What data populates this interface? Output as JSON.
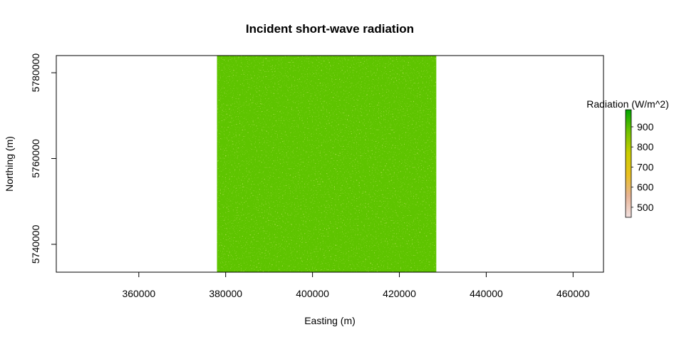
{
  "chart_data": {
    "type": "heatmap",
    "title": "Incident short-wave radiation",
    "xlabel": "Easting (m)",
    "ylabel": "Northing (m)",
    "xlim": [
      341000,
      467000
    ],
    "ylim": [
      5733500,
      5784000
    ],
    "x_ticks": [
      360000,
      380000,
      400000,
      420000,
      440000,
      460000
    ],
    "x_tick_labels": [
      "360000",
      "380000",
      "400000",
      "420000",
      "440000",
      "460000"
    ],
    "y_ticks": [
      5740000,
      5760000,
      5780000
    ],
    "y_tick_labels": [
      "5740000",
      "5760000",
      "5780000"
    ],
    "raster_extent": {
      "xmin": 378000,
      "xmax": 428500,
      "ymin": 5733500,
      "ymax": 5784000
    },
    "dominant_value": 950,
    "dominant_color": "#5ec400",
    "legend": {
      "title": "Radiation (W/m^2)",
      "range": [
        450,
        985
      ],
      "ticks": [
        500,
        600,
        700,
        800,
        900
      ],
      "tick_labels": [
        "500",
        "600",
        "700",
        "800",
        "900"
      ],
      "colors": [
        "#f2e1e1",
        "#e8b495",
        "#e9c01f",
        "#c9cd00",
        "#6fc200",
        "#00a600"
      ]
    },
    "grid": false
  }
}
